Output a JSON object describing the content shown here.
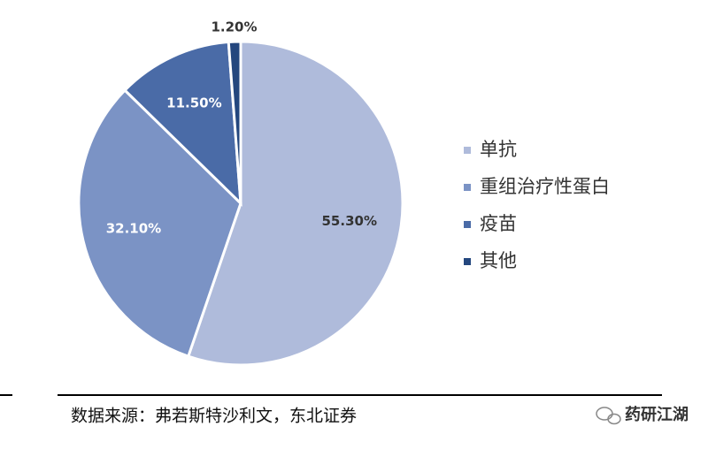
{
  "chart_data": {
    "type": "pie",
    "categories": [
      "单抗",
      "重组治疗性蛋白",
      "疫苗",
      "其他"
    ],
    "values": [
      55.3,
      32.1,
      11.5,
      1.2
    ],
    "value_labels": [
      "55.30%",
      "32.10%",
      "11.50%",
      "1.20%"
    ],
    "colors": [
      "#afbbdb",
      "#7b93c5",
      "#4a6ba7",
      "#24477e"
    ],
    "legend": "right"
  },
  "source": "数据来源：弗若斯特沙利文，东北证券",
  "watermark": "药研江湖"
}
